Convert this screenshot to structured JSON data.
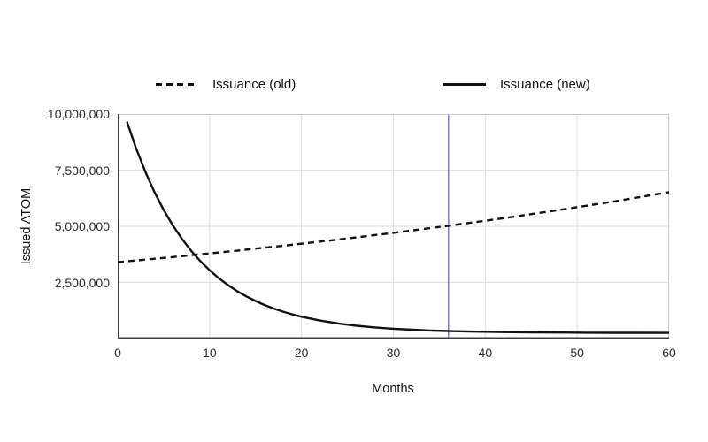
{
  "chart_data": {
    "type": "line",
    "title": "",
    "xlabel": "Months",
    "ylabel": "Issued ATOM",
    "xlim": [
      0,
      60
    ],
    "ylim": [
      0,
      10000000
    ],
    "xticks": [
      0,
      10,
      20,
      30,
      40,
      50,
      60
    ],
    "yticks": [
      2500000,
      5000000,
      7500000,
      10000000
    ],
    "ytick_labels": [
      "2,500,000",
      "5,000,000",
      "7,500,000",
      "10,000,000"
    ],
    "grid": true,
    "legend_position": "top",
    "vline": {
      "x": 36,
      "color": "#8a7fd6"
    },
    "series": [
      {
        "name": "Issuance (old)",
        "style": "dashed",
        "color": "#111111",
        "points": [
          [
            0,
            3400000
          ],
          [
            6,
            3629000
          ],
          [
            12,
            3873000
          ],
          [
            18,
            4133000
          ],
          [
            24,
            4411000
          ],
          [
            30,
            4708000
          ],
          [
            36,
            5025000
          ],
          [
            42,
            5363000
          ],
          [
            48,
            5724000
          ],
          [
            54,
            6108000
          ],
          [
            60,
            6519000
          ]
        ]
      },
      {
        "name": "Issuance (new)",
        "style": "solid",
        "color": "#111111",
        "points": [
          [
            1,
            9660000
          ],
          [
            2,
            8471000
          ],
          [
            3,
            7434000
          ],
          [
            4,
            6527000
          ],
          [
            5,
            5733000
          ],
          [
            6,
            5041000
          ],
          [
            7,
            4436000
          ],
          [
            8,
            3907000
          ],
          [
            9,
            3445000
          ],
          [
            10,
            3042000
          ],
          [
            11,
            2689000
          ],
          [
            12,
            2381000
          ],
          [
            13,
            2112000
          ],
          [
            14,
            1877000
          ],
          [
            15,
            1672000
          ],
          [
            16,
            1492000
          ],
          [
            17,
            1335000
          ],
          [
            18,
            1198000
          ],
          [
            19,
            1078000
          ],
          [
            20,
            974000
          ],
          [
            22,
            802000
          ],
          [
            24,
            672000
          ],
          [
            26,
            572000
          ],
          [
            28,
            496000
          ],
          [
            30,
            437000
          ],
          [
            32,
            393000
          ],
          [
            34,
            359000
          ],
          [
            36,
            333000
          ],
          [
            39,
            306000
          ],
          [
            42,
            287000
          ],
          [
            45,
            275000
          ],
          [
            48,
            267000
          ],
          [
            51,
            261000
          ],
          [
            54,
            257000
          ],
          [
            57,
            255000
          ],
          [
            60,
            253000
          ]
        ]
      }
    ],
    "colors": {
      "line": "#111111",
      "vline": "#8a7fd6",
      "grid": "#dedede",
      "axis_dark": "#3d3d3d",
      "border_light": "#c9c9c9",
      "text": "#2b2b2b"
    }
  }
}
